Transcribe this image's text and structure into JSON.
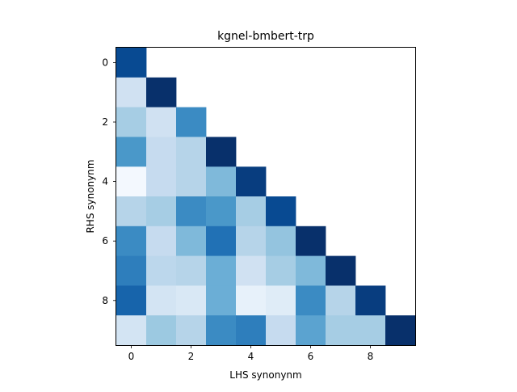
{
  "chart_data": {
    "type": "heatmap",
    "title": "kgnel-bmbert-trp",
    "xlabel": "LHS synonynm",
    "ylabel": "RHS synonynm",
    "colormap": "Blues",
    "masked": "upper-triangle",
    "x_ticks": [
      0,
      2,
      4,
      6,
      8
    ],
    "y_ticks": [
      0,
      2,
      4,
      6,
      8
    ],
    "xlim": [
      -0.5,
      9.5
    ],
    "ylim": [
      9.5,
      -0.5
    ],
    "grid": false,
    "colors": {
      "low": "#f7fbff",
      "high": "#08306b"
    },
    "values": [
      [
        0.9,
        null,
        null,
        null,
        null,
        null,
        null,
        null,
        null,
        null
      ],
      [
        0.2,
        1.0,
        null,
        null,
        null,
        null,
        null,
        null,
        null,
        null
      ],
      [
        0.35,
        0.2,
        0.65,
        null,
        null,
        null,
        null,
        null,
        null,
        null
      ],
      [
        0.6,
        0.25,
        0.3,
        1.0,
        null,
        null,
        null,
        null,
        null,
        null
      ],
      [
        0.02,
        0.25,
        0.3,
        0.45,
        0.95,
        null,
        null,
        null,
        null,
        null
      ],
      [
        0.3,
        0.35,
        0.65,
        0.6,
        0.35,
        0.9,
        null,
        null,
        null,
        null
      ],
      [
        0.65,
        0.25,
        0.45,
        0.75,
        0.3,
        0.4,
        1.0,
        null,
        null,
        null
      ],
      [
        0.7,
        0.28,
        0.3,
        0.5,
        0.2,
        0.35,
        0.45,
        1.0,
        null,
        null
      ],
      [
        0.8,
        0.18,
        0.15,
        0.5,
        0.08,
        0.12,
        0.65,
        0.3,
        0.95,
        null
      ],
      [
        0.18,
        0.38,
        0.3,
        0.65,
        0.7,
        0.25,
        0.55,
        0.35,
        0.35,
        1.0
      ]
    ]
  }
}
